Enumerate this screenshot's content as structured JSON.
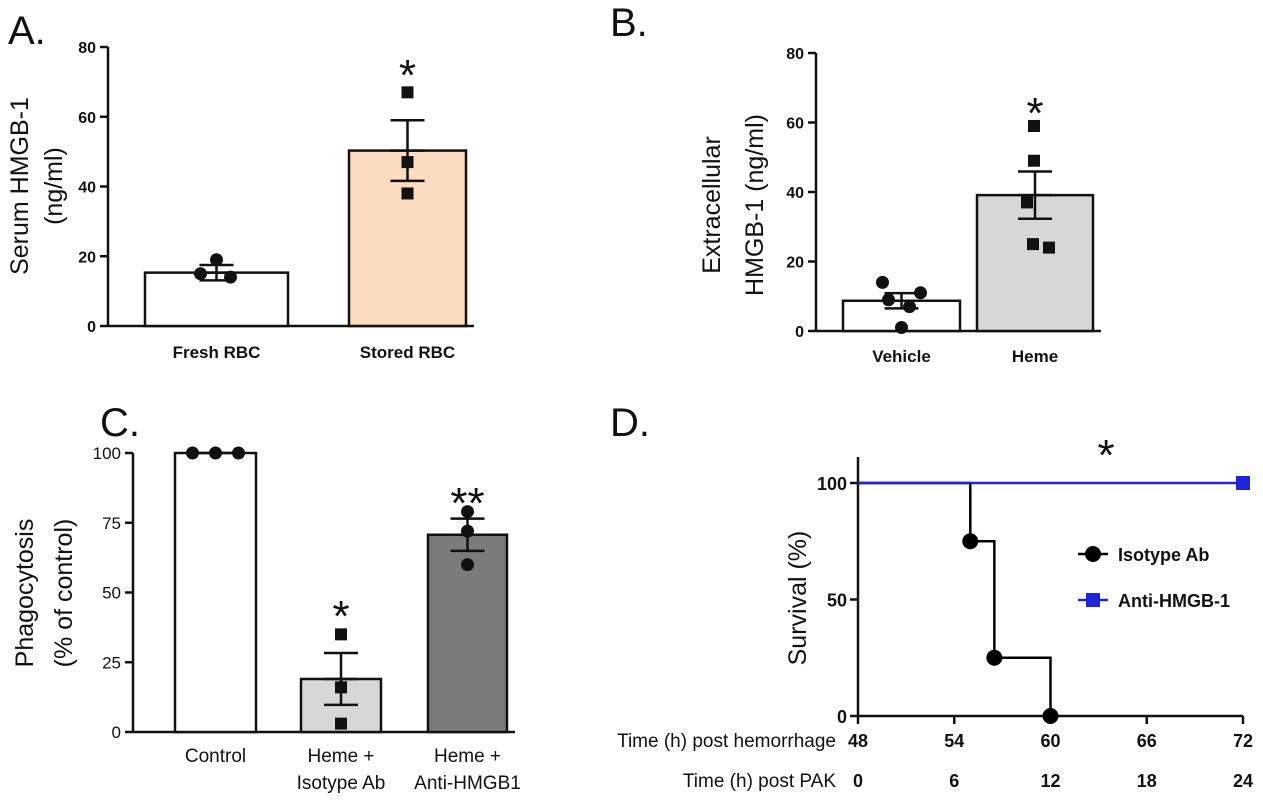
{
  "chart_data": [
    {
      "panel": "A.",
      "type": "bar",
      "ylabel_lines": [
        "Serum HMGB-1",
        "(ng/ml)"
      ],
      "ylim": [
        0,
        80
      ],
      "yticks": [
        "0",
        "20",
        "40",
        "60",
        "80"
      ],
      "categories": [
        "Fresh RBC",
        "Stored RBC"
      ],
      "values": [
        15.3,
        50.3
      ],
      "sem": [
        2.2,
        8.7
      ],
      "bar_colors": [
        "#ffffff",
        "#fbdcc0"
      ],
      "points": [
        [
          19,
          15,
          14
        ],
        [
          67,
          47,
          38
        ]
      ],
      "marker": [
        "circle",
        "square"
      ],
      "annotations": [
        {
          "category": "Stored RBC",
          "text": "*"
        }
      ]
    },
    {
      "panel": "B.",
      "type": "bar",
      "ylabel_lines": [
        "Extracellular",
        "HMGB-1 (ng/ml)"
      ],
      "ylim": [
        0,
        80
      ],
      "yticks": [
        "0",
        "20",
        "40",
        "60",
        "80"
      ],
      "categories": [
        "Vehicle",
        "Heme"
      ],
      "values": [
        8.7,
        39.1
      ],
      "sem": [
        2.2,
        6.8
      ],
      "bar_colors": [
        "#ffffff",
        "#d7d7d7"
      ],
      "points": [
        [
          14,
          11,
          9,
          7,
          1
        ],
        [
          59,
          49,
          37,
          25,
          24
        ]
      ],
      "marker": [
        "circle",
        "square"
      ],
      "annotations": [
        {
          "category": "Heme",
          "text": "*"
        }
      ]
    },
    {
      "panel": "C.",
      "type": "bar",
      "ylabel_lines": [
        "Phagocytosis",
        "(% of control)"
      ],
      "ylim": [
        0,
        100
      ],
      "yticks": [
        "0",
        "25",
        "50",
        "75",
        "100"
      ],
      "categories": [
        [
          "Control"
        ],
        [
          "Heme  +",
          "Isotype  Ab"
        ],
        [
          "Heme  +",
          "Anti-HMGB1"
        ]
      ],
      "values": [
        100,
        19,
        70.7
      ],
      "sem": [
        0,
        9.3,
        5.8
      ],
      "bar_colors": [
        "#ffffff",
        "#d7d7d7",
        "#7b7b7b"
      ],
      "points": [
        [
          100,
          100,
          100
        ],
        [
          35,
          16,
          3
        ],
        [
          79,
          72,
          60
        ]
      ],
      "marker": [
        "circle",
        "square",
        "circle"
      ],
      "annotations": [
        {
          "category": 1,
          "text": "*"
        },
        {
          "category": 2,
          "text": "**"
        }
      ]
    },
    {
      "panel": "D.",
      "type": "line",
      "kind": "survival-step",
      "ylabel": "Survival (%)",
      "ylim": [
        0,
        100
      ],
      "yticks": [
        "0",
        "50",
        "100"
      ],
      "xlim": [
        48,
        72
      ],
      "x_rows": [
        {
          "label": "Time (h) post hemorrhage",
          "ticks": [
            "48",
            "54",
            "60",
            "66",
            "72"
          ]
        },
        {
          "label": "Time (h) post PAK",
          "ticks": [
            "0",
            "6",
            "12",
            "18",
            "24"
          ]
        }
      ],
      "series": [
        {
          "name": "Isotype Ab",
          "color": "#000000",
          "marker": "circle",
          "steps": [
            [
              48,
              100
            ],
            [
              55,
              100
            ],
            [
              55,
              75
            ],
            [
              56.5,
              75
            ],
            [
              56.5,
              25
            ],
            [
              60,
              25
            ],
            [
              60,
              0
            ]
          ],
          "markers": [
            [
              55,
              75
            ],
            [
              56.5,
              25
            ],
            [
              60,
              0
            ]
          ]
        },
        {
          "name": "Anti-HMGB-1",
          "color": "#1f25d9",
          "marker": "square",
          "steps": [
            [
              48,
              100
            ],
            [
              72,
              100
            ]
          ],
          "markers": [
            [
              72,
              100
            ]
          ]
        }
      ],
      "legend": "right",
      "annotations": [
        {
          "text": "*"
        }
      ]
    }
  ]
}
